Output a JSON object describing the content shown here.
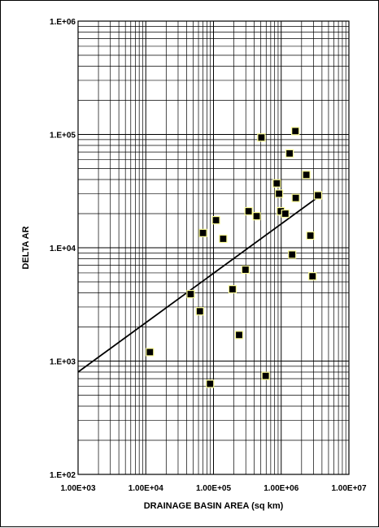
{
  "chart_data": {
    "type": "scatter",
    "title": "",
    "xlabel": "DRAINAGE BASIN AREA (sq km)",
    "ylabel": "DELTA AR",
    "x_scale": "log",
    "y_scale": "log",
    "xlim": [
      1000,
      10000000
    ],
    "ylim": [
      100,
      1000000
    ],
    "x_ticks": [
      "1.00E+03",
      "1.00E+04",
      "1.00E+05",
      "1.00E+06",
      "1.00E+07"
    ],
    "y_ticks": [
      "1.E+02",
      "1.E+03",
      "1.E+04",
      "1.E+05",
      "1.E+06"
    ],
    "grid": true,
    "legend": "none",
    "marker_color": "#000000",
    "marker_edge_color": "#ffff99",
    "line_color": "#000000",
    "points": [
      {
        "x": 11500,
        "y": 1200
      },
      {
        "x": 46000,
        "y": 3900
      },
      {
        "x": 63000,
        "y": 2750
      },
      {
        "x": 70000,
        "y": 13500
      },
      {
        "x": 89000,
        "y": 630
      },
      {
        "x": 109000,
        "y": 17500
      },
      {
        "x": 139000,
        "y": 12000
      },
      {
        "x": 191000,
        "y": 4300
      },
      {
        "x": 239000,
        "y": 1700
      },
      {
        "x": 297000,
        "y": 6400
      },
      {
        "x": 330000,
        "y": 21000
      },
      {
        "x": 434000,
        "y": 19000
      },
      {
        "x": 510000,
        "y": 94000
      },
      {
        "x": 590000,
        "y": 740
      },
      {
        "x": 860000,
        "y": 37000
      },
      {
        "x": 930000,
        "y": 30000
      },
      {
        "x": 985000,
        "y": 21000
      },
      {
        "x": 1150000,
        "y": 20000
      },
      {
        "x": 1330000,
        "y": 68000
      },
      {
        "x": 1450000,
        "y": 8700
      },
      {
        "x": 1620000,
        "y": 107000
      },
      {
        "x": 1640000,
        "y": 27500
      },
      {
        "x": 2350000,
        "y": 44000
      },
      {
        "x": 2700000,
        "y": 12800
      },
      {
        "x": 2900000,
        "y": 5600
      },
      {
        "x": 3500000,
        "y": 29000
      }
    ],
    "trend_line": {
      "x": [
        1000,
        3500000
      ],
      "y": [
        800,
        28000
      ]
    }
  }
}
